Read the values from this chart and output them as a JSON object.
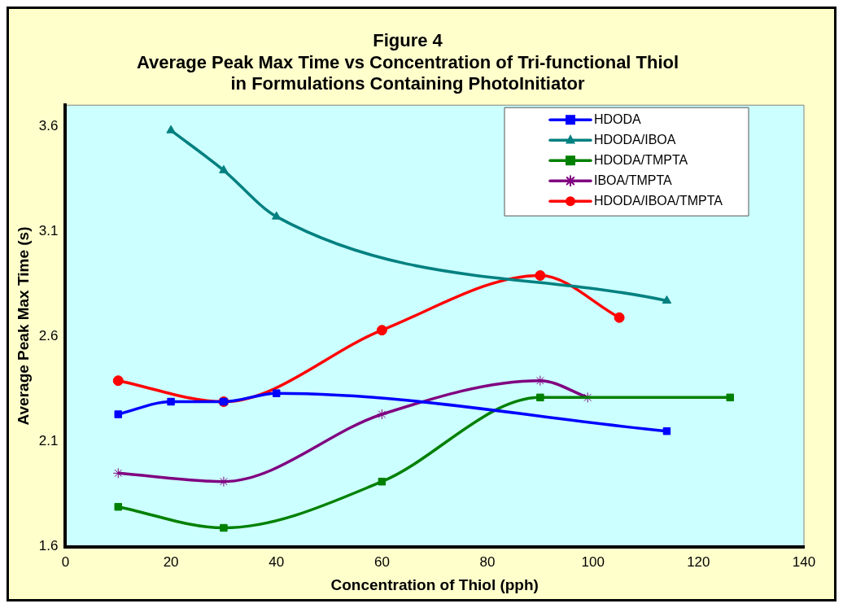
{
  "chart_data": {
    "type": "line",
    "title": "Figure 4\nAverage Peak Max Time vs Concentration of Tri-functional Thiol\nin Formulations Containing PhotoInitiator",
    "xlabel": "Concentration of Thiol (pph)",
    "ylabel": "Average Peak Max Time (s)",
    "xlim": [
      0,
      140
    ],
    "xticks": [
      0,
      20,
      40,
      60,
      80,
      100,
      120,
      140
    ],
    "ylim": [
      1.6,
      3.7
    ],
    "yticks": [
      1.6,
      2.1,
      2.6,
      3.1,
      3.6
    ],
    "grid": false,
    "legend": "top right",
    "series": [
      {
        "name": "HDODA",
        "color": "#0000ff",
        "marker": "square",
        "x": [
          10,
          20,
          30,
          40,
          114
        ],
        "values": [
          2.23,
          2.29,
          2.29,
          2.33,
          2.15
        ]
      },
      {
        "name": "HDODA/IBOA",
        "color": "#008080",
        "marker": "triangle",
        "x": [
          20,
          30,
          40,
          114
        ],
        "values": [
          3.58,
          3.39,
          3.17,
          2.77
        ]
      },
      {
        "name": "HDODA/TMPTA",
        "color": "#008000",
        "marker": "square",
        "x": [
          10,
          30,
          60,
          90,
          126
        ],
        "values": [
          1.79,
          1.69,
          1.91,
          2.31,
          2.31
        ]
      },
      {
        "name": "IBOA/TMPTA",
        "color": "#800080",
        "marker": "cross",
        "x": [
          10,
          30,
          60,
          90,
          99
        ],
        "values": [
          1.95,
          1.91,
          2.23,
          2.39,
          2.31
        ]
      },
      {
        "name": "HDODA/IBOA/TMPTA",
        "color": "#ff0000",
        "marker": "circle",
        "x": [
          10,
          30,
          60,
          90,
          105
        ],
        "values": [
          2.39,
          2.29,
          2.63,
          2.89,
          2.69
        ]
      }
    ]
  }
}
